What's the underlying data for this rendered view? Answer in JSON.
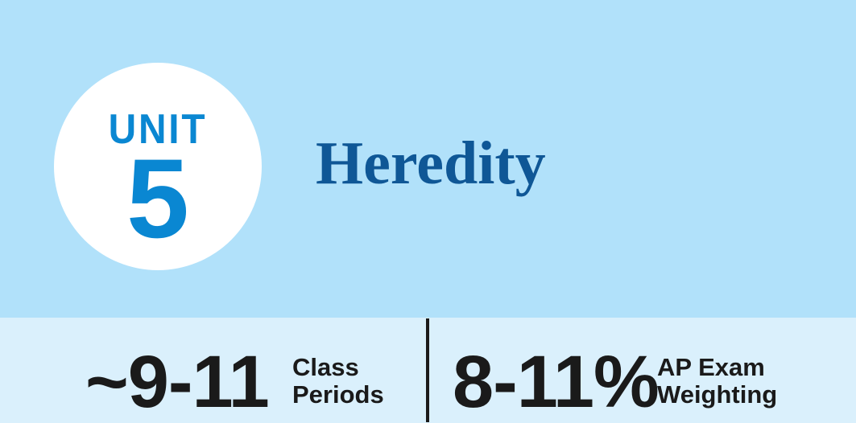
{
  "header": {
    "unit_label": "UNIT",
    "unit_number": "5",
    "title": "Heredity"
  },
  "stats": {
    "class_periods": {
      "value": "~9-11",
      "label_line1": "Class",
      "label_line2": "Periods"
    },
    "exam_weighting": {
      "value": "8-11%",
      "label_line1": "AP Exam",
      "label_line2": "Weighting"
    }
  },
  "colors": {
    "header_background": "#b1e1fa",
    "stats_background": "#daf0fc",
    "unit_accent": "#0a87d2",
    "title_color": "#0f5796",
    "stat_text": "#1a1a1a"
  }
}
